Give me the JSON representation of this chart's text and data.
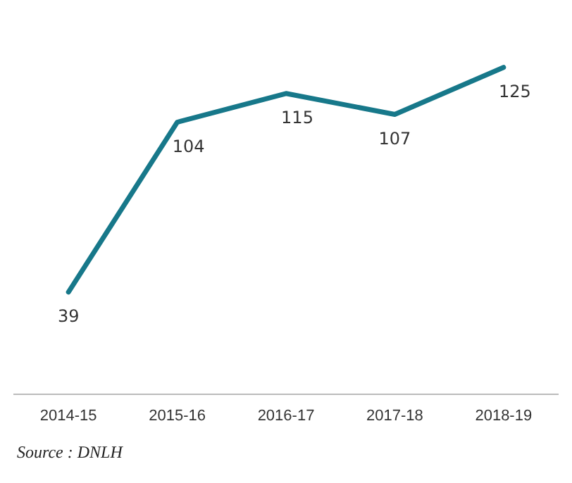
{
  "chart_data": {
    "type": "line",
    "categories": [
      "2014-15",
      "2015-16",
      "2016-17",
      "2017-18",
      "2018-19"
    ],
    "values": [
      39,
      104,
      115,
      107,
      125
    ],
    "color": "#17788a",
    "tick_labels": "x",
    "grid": false,
    "legend": false,
    "marker": "none",
    "line_style": "solid",
    "data_labels": true,
    "annotations": [
      "Source : DNLH"
    ]
  }
}
